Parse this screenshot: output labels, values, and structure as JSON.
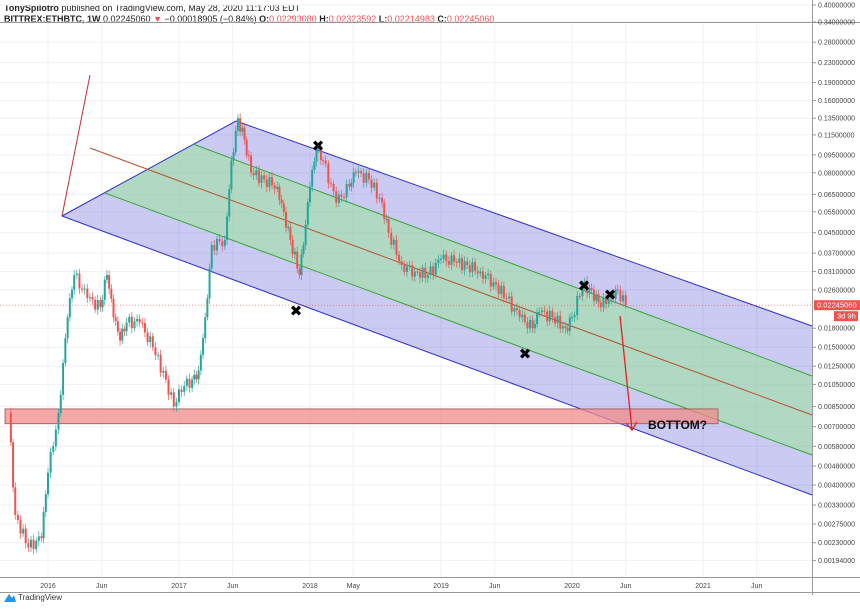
{
  "header": {
    "author": "TonySpilotro",
    "published": "published on TradingView.com, May 28, 2020 11:17:03 EDT",
    "symbol": "BITTREX:ETHBTC, 1W",
    "last": "0.02245060",
    "change": "−0.00018905 (−0.84%)",
    "o_label": "O:",
    "o": "0.02293080",
    "h_label": "H:",
    "h": "0.02323592",
    "l_label": "L:",
    "l": "0.02214983",
    "c_label": "C:",
    "c": "0.02245060",
    "down_icon": "triangle-down-icon"
  },
  "price_tag": {
    "value": "0.02245060",
    "countdown": "3d 9h"
  },
  "annotation": {
    "text": "BOTTOM?"
  },
  "footer": {
    "brand": "TradingView"
  },
  "colors": {
    "up": "#26a69a",
    "down": "#ef5350",
    "channel_outer": "#3f3fd0",
    "channel_inner": "#4caf50",
    "median": "#b5522a",
    "support_zone": "#f28b8b"
  },
  "chart_data": {
    "type": "candlestick",
    "scale": "log",
    "y_ticks": [
      0.4,
      0.34,
      0.28,
      0.23,
      0.19,
      0.16,
      0.135,
      0.115,
      0.095,
      0.08,
      0.065,
      0.055,
      0.045,
      0.037,
      0.031,
      0.026,
      0.018,
      0.015,
      0.0125,
      0.0105,
      0.0085,
      0.007,
      0.0058,
      0.0048,
      0.004,
      0.0033,
      0.00275,
      0.0023,
      0.00194
    ],
    "y_tick_labels": [
      "0.40000000",
      "0.34000000",
      "0.28000000",
      "0.23000000",
      "0.19000000",
      "0.16000000",
      "0.13500000",
      "0.11500000",
      "0.09500000",
      "0.08000000",
      "0.06500000",
      "0.05500000",
      "0.04500000",
      "0.03700000",
      "0.03100000",
      "0.02600000",
      "0.01800000",
      "0.01500000",
      "0.01250000",
      "0.01050000",
      "0.00850000",
      "0.00700000",
      "0.00580000",
      "0.00480000",
      "0.00400000",
      "0.00330000",
      "0.00275000",
      "0.00230000",
      "0.00194000"
    ],
    "x_ticks": [
      2016,
      2016.41,
      2017,
      2017.41,
      2018,
      2018.33,
      2019,
      2019.41,
      2020,
      2020.41,
      2021,
      2021.41
    ],
    "x_tick_labels": [
      "2016",
      "Jun",
      "2017",
      "Jun",
      "2018",
      "May",
      "2019",
      "Jun",
      "2020",
      "Jun",
      "2021",
      "Jun"
    ],
    "close_path": [
      [
        2015.7,
        0.008
      ],
      [
        2015.75,
        0.003
      ],
      [
        2015.85,
        0.0022
      ],
      [
        2015.95,
        0.0024
      ],
      [
        2016.0,
        0.0045
      ],
      [
        2016.08,
        0.008
      ],
      [
        2016.15,
        0.02
      ],
      [
        2016.2,
        0.03
      ],
      [
        2016.3,
        0.024
      ],
      [
        2016.4,
        0.022
      ],
      [
        2016.45,
        0.03
      ],
      [
        2016.5,
        0.02
      ],
      [
        2016.55,
        0.016
      ],
      [
        2016.6,
        0.019
      ],
      [
        2016.7,
        0.019
      ],
      [
        2016.8,
        0.015
      ],
      [
        2016.9,
        0.011
      ],
      [
        2016.96,
        0.0085
      ],
      [
        2017.0,
        0.01
      ],
      [
        2017.1,
        0.011
      ],
      [
        2017.15,
        0.012
      ],
      [
        2017.2,
        0.02
      ],
      [
        2017.25,
        0.04
      ],
      [
        2017.35,
        0.042
      ],
      [
        2017.4,
        0.09
      ],
      [
        2017.45,
        0.135
      ],
      [
        2017.5,
        0.11
      ],
      [
        2017.55,
        0.08
      ],
      [
        2017.65,
        0.075
      ],
      [
        2017.75,
        0.07
      ],
      [
        2017.8,
        0.055
      ],
      [
        2017.85,
        0.042
      ],
      [
        2017.92,
        0.03
      ],
      [
        2017.95,
        0.04
      ],
      [
        2018.0,
        0.07
      ],
      [
        2018.05,
        0.1
      ],
      [
        2018.1,
        0.09
      ],
      [
        2018.2,
        0.06
      ],
      [
        2018.3,
        0.07
      ],
      [
        2018.35,
        0.08
      ],
      [
        2018.45,
        0.075
      ],
      [
        2018.55,
        0.06
      ],
      [
        2018.6,
        0.045
      ],
      [
        2018.7,
        0.033
      ],
      [
        2018.8,
        0.031
      ],
      [
        2018.9,
        0.03
      ],
      [
        2019.0,
        0.035
      ],
      [
        2019.1,
        0.034
      ],
      [
        2019.2,
        0.033
      ],
      [
        2019.3,
        0.031
      ],
      [
        2019.4,
        0.028
      ],
      [
        2019.5,
        0.024
      ],
      [
        2019.6,
        0.02
      ],
      [
        2019.7,
        0.018
      ],
      [
        2019.75,
        0.021
      ],
      [
        2019.85,
        0.02
      ],
      [
        2019.95,
        0.018
      ],
      [
        2020.0,
        0.02
      ],
      [
        2020.08,
        0.027
      ],
      [
        2020.15,
        0.026
      ],
      [
        2020.22,
        0.022
      ],
      [
        2020.3,
        0.025
      ],
      [
        2020.35,
        0.026
      ],
      [
        2020.41,
        0.02245
      ]
    ],
    "last_price": 0.0224506,
    "support_zone": [
      0.0072,
      0.0083
    ]
  }
}
